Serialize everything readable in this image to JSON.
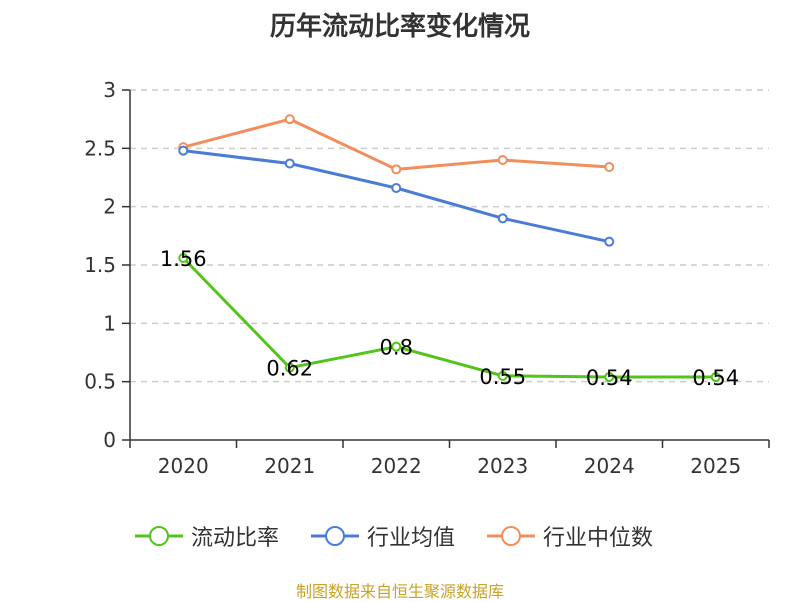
{
  "title": "历年流动比率变化情况",
  "source": "制图数据来自恒生聚源数据库",
  "chart_data": {
    "type": "line",
    "title": "历年流动比率变化情况",
    "categories": [
      "2020",
      "2021",
      "2022",
      "2023",
      "2024",
      "2025"
    ],
    "ylim": [
      0,
      3
    ],
    "yticks": [
      0,
      0.5,
      1,
      1.5,
      2,
      2.5,
      3
    ],
    "ytick_labels": [
      "0",
      "0.5",
      "1",
      "1.5",
      "2",
      "2.5",
      "3"
    ],
    "grid": true,
    "legend_position": "bottom",
    "series": [
      {
        "name": "流动比率",
        "color": "#52c41a",
        "values": [
          1.56,
          0.62,
          0.8,
          0.55,
          0.54,
          0.54
        ],
        "labels": [
          "1.56",
          "0.62",
          "0.8",
          "0.55",
          "0.54",
          "0.54"
        ],
        "show_labels": true
      },
      {
        "name": "行业均值",
        "color": "#4a7bd6",
        "values": [
          2.48,
          2.37,
          2.16,
          1.9,
          1.7,
          null
        ],
        "show_labels": false
      },
      {
        "name": "行业中位数",
        "color": "#f28e5c",
        "values": [
          2.51,
          2.75,
          2.32,
          2.4,
          2.34,
          null
        ],
        "show_labels": false
      }
    ]
  }
}
